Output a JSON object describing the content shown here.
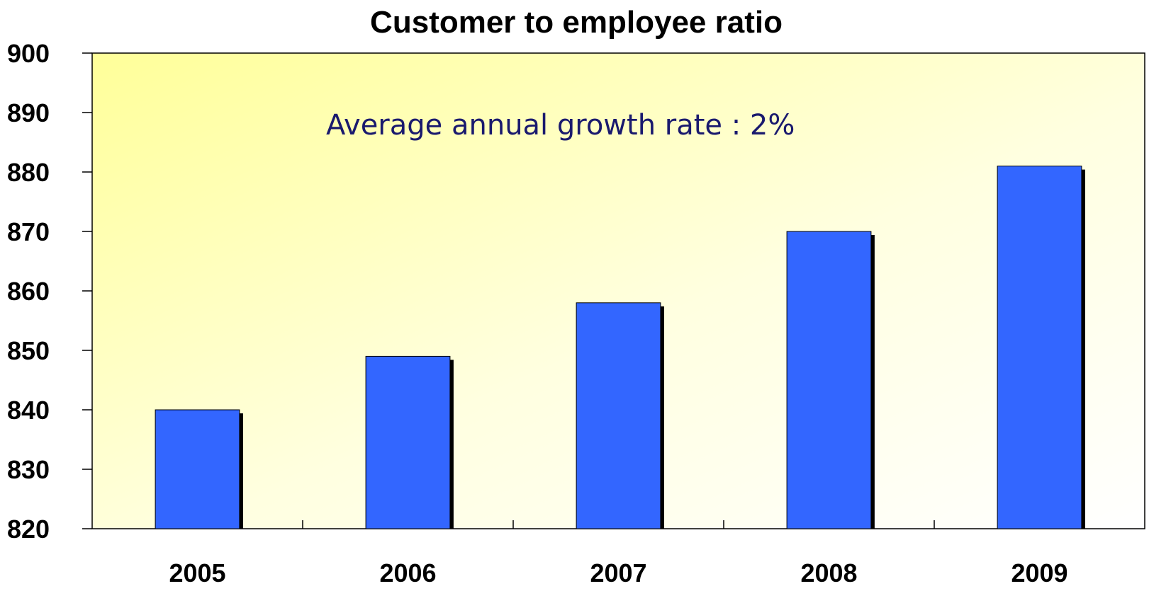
{
  "chart_data": {
    "type": "bar",
    "title": "Customer to employee ratio",
    "annotation": "Average annual growth rate : 2%",
    "categories": [
      "2005",
      "2006",
      "2007",
      "2008",
      "2009"
    ],
    "values": [
      840,
      849,
      858,
      870,
      881
    ],
    "ylim": [
      820,
      900
    ],
    "yticks": [
      "900",
      "890",
      "880",
      "870",
      "860",
      "850",
      "840",
      "830",
      "820"
    ],
    "xlabel": "",
    "ylabel": "",
    "grid": false,
    "colors": {
      "bar": "#3366ff",
      "bar_shadow": "#000000",
      "plot_bg_start": "#ffff99",
      "plot_bg_end": "#ffffff",
      "annotation": "#1a1a6e"
    }
  }
}
